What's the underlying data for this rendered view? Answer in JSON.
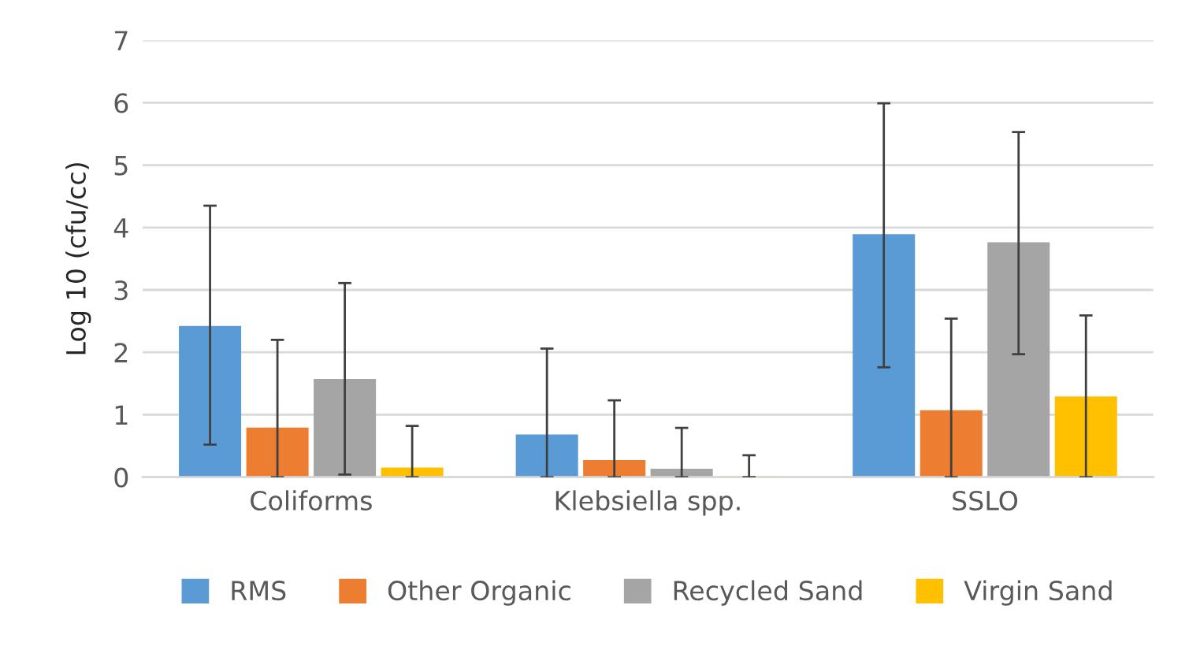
{
  "chart_data": {
    "type": "bar",
    "ylabel": "Log 10 (cfu/cc)",
    "categories": [
      "Coliforms",
      "Klebsiella spp.",
      "SSLO"
    ],
    "series": [
      {
        "name": "RMS",
        "color": "#5b9bd5",
        "values": [
          2.41,
          0.67,
          3.88
        ],
        "errors": [
          [
            0.52,
            4.35
          ],
          [
            0,
            2.06
          ],
          [
            1.76,
            5.99
          ]
        ]
      },
      {
        "name": "Other Organic",
        "color": "#ed7d31",
        "values": [
          0.78,
          0.26,
          1.06
        ],
        "errors": [
          [
            0,
            2.2
          ],
          [
            0,
            1.23
          ],
          [
            0,
            2.54
          ]
        ]
      },
      {
        "name": "Recycled Sand",
        "color": "#a5a5a5",
        "values": [
          1.56,
          0.12,
          3.75
        ],
        "errors": [
          [
            0.04,
            3.11
          ],
          [
            0,
            0.79
          ],
          [
            1.97,
            5.53
          ]
        ]
      },
      {
        "name": "Virgin Sand",
        "color": "#ffc000",
        "values": [
          0.14,
          0,
          1.28
        ],
        "errors": [
          [
            0,
            0.82
          ],
          [
            0,
            0.35
          ],
          [
            0,
            2.59
          ]
        ]
      }
    ],
    "ylim": [
      0,
      7
    ],
    "yticks": [
      0,
      1,
      2,
      3,
      4,
      5,
      6,
      7
    ],
    "grid": "y",
    "legend": "bottom"
  }
}
